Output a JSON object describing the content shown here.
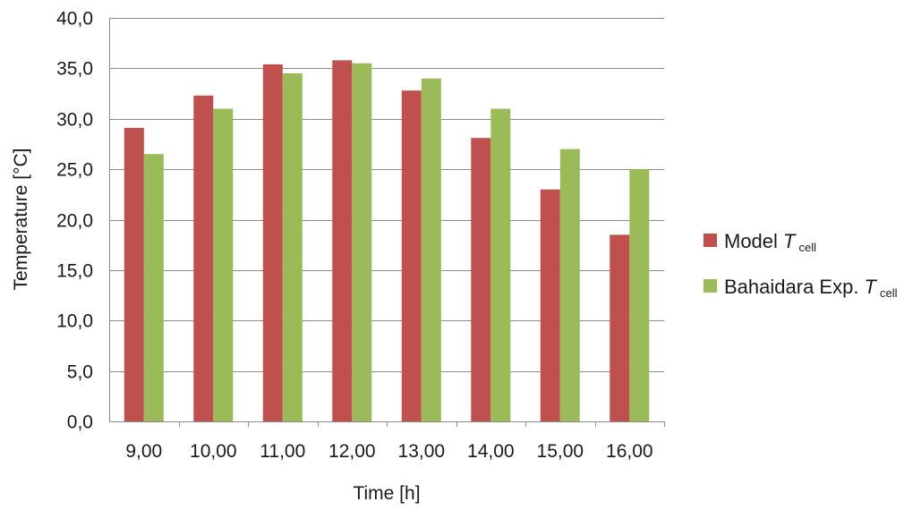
{
  "chart_data": {
    "type": "bar",
    "title": "",
    "xlabel": "Time [h]",
    "ylabel": "Temperature [°C]",
    "categories": [
      "9,00",
      "10,00",
      "11,00",
      "12,00",
      "13,00",
      "14,00",
      "15,00",
      "16,00"
    ],
    "ylim": [
      0,
      40
    ],
    "yticks": [
      "0,0",
      "5,0",
      "10,0",
      "15,0",
      "20,0",
      "25,0",
      "30,0",
      "35,0",
      "40,0"
    ],
    "grid": true,
    "legend_position": "right",
    "series": [
      {
        "name": "Model T cell",
        "legend_prefix": "Model ",
        "legend_symbol": "T",
        "legend_subscript": "cell",
        "color": "#c0504d",
        "values": [
          29.1,
          32.3,
          35.4,
          35.8,
          32.8,
          28.1,
          23.0,
          18.5
        ]
      },
      {
        "name": "Bahaidara Exp. T cell",
        "legend_prefix": "Bahaidara Exp. ",
        "legend_symbol": "T",
        "legend_subscript": "cell",
        "color": "#9bbb59",
        "values": [
          26.5,
          31.0,
          34.5,
          35.5,
          34.0,
          31.0,
          27.0,
          25.0
        ]
      }
    ]
  }
}
